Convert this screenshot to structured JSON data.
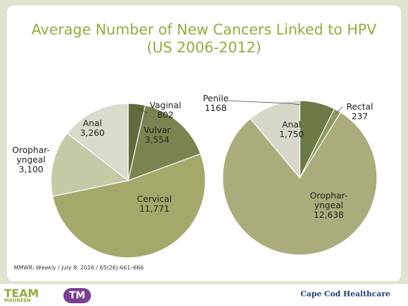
{
  "title": "Average Number of New Cancers Linked to HPV (US 2006-2012)",
  "source": {
    "prefix": "MMWR: ",
    "journal": "Weekly",
    "rest": " / July 8, 2016 / 65(26):661–666"
  },
  "logos": {
    "left_top": "TEAM",
    "left_bottom": "MAUREEN",
    "left_badge": "TM",
    "right": "Cape Cod Healthcare"
  },
  "chart_data": [
    {
      "type": "pie",
      "categories": [
        "Vaginal",
        "Vulvar",
        "Cervical",
        "Orophar-\nyngeal",
        "Anal"
      ],
      "values": [
        802,
        3554,
        11771,
        3100,
        3260
      ],
      "value_labels": [
        "802",
        "3,554",
        "11,771",
        "3,100",
        "3,260"
      ],
      "colors": [
        "#5f6b3b",
        "#7a8450",
        "#a4a96b",
        "#c6c9a6",
        "#dadbcc"
      ]
    },
    {
      "type": "pie",
      "categories": [
        "Penile",
        "Rectal",
        "Orophar-\nyngeal",
        "Anal"
      ],
      "values": [
        1168,
        237,
        12638,
        1750
      ],
      "value_labels": [
        "1168",
        "237",
        "12,638",
        "1,750"
      ],
      "colors": [
        "#6c7a46",
        "#8f9b5f",
        "#aaad7b",
        "#d7d8c9"
      ]
    }
  ]
}
